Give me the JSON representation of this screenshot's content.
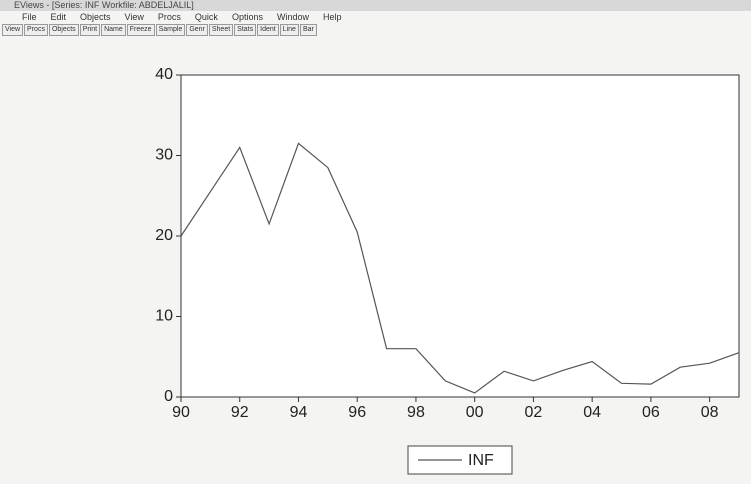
{
  "window": {
    "title": "EViews - [Series: INF   Workfile: ABDELJALIL]",
    "menu": [
      "File",
      "Edit",
      "Objects",
      "View",
      "Procs",
      "Quick",
      "Options",
      "Window",
      "Help"
    ],
    "toolbar": [
      "View",
      "Procs",
      "Objects",
      "Print",
      "Name",
      "Freeze",
      "Sample",
      "Genr",
      "Sheet",
      "Stats",
      "Ident",
      "Line",
      "Bar"
    ]
  },
  "chart_data": {
    "type": "line",
    "x": [
      1990,
      1991,
      1992,
      1993,
      1994,
      1995,
      1996,
      1997,
      1998,
      1999,
      2000,
      2001,
      2002,
      2003,
      2004,
      2005,
      2006,
      2007,
      2008,
      2009
    ],
    "series": [
      {
        "name": "INF",
        "color": "#555555",
        "values": [
          20,
          25.5,
          31,
          21.5,
          31.5,
          28.5,
          20.5,
          6,
          6,
          2,
          0.5,
          3.2,
          2,
          3.3,
          4.4,
          1.7,
          1.6,
          3.7,
          4.2,
          5.5
        ]
      }
    ],
    "xlim": [
      1990,
      2009
    ],
    "xticks": [
      {
        "value": 1990,
        "label": "90"
      },
      {
        "value": 1992,
        "label": "92"
      },
      {
        "value": 1994,
        "label": "94"
      },
      {
        "value": 1996,
        "label": "96"
      },
      {
        "value": 1998,
        "label": "98"
      },
      {
        "value": 2000,
        "label": "00"
      },
      {
        "value": 2002,
        "label": "02"
      },
      {
        "value": 2004,
        "label": "04"
      },
      {
        "value": 2006,
        "label": "06"
      },
      {
        "value": 2008,
        "label": "08"
      }
    ],
    "ylim": [
      0,
      40
    ],
    "yticks": [
      0,
      10,
      20,
      30,
      40
    ],
    "legend": "bottom"
  }
}
